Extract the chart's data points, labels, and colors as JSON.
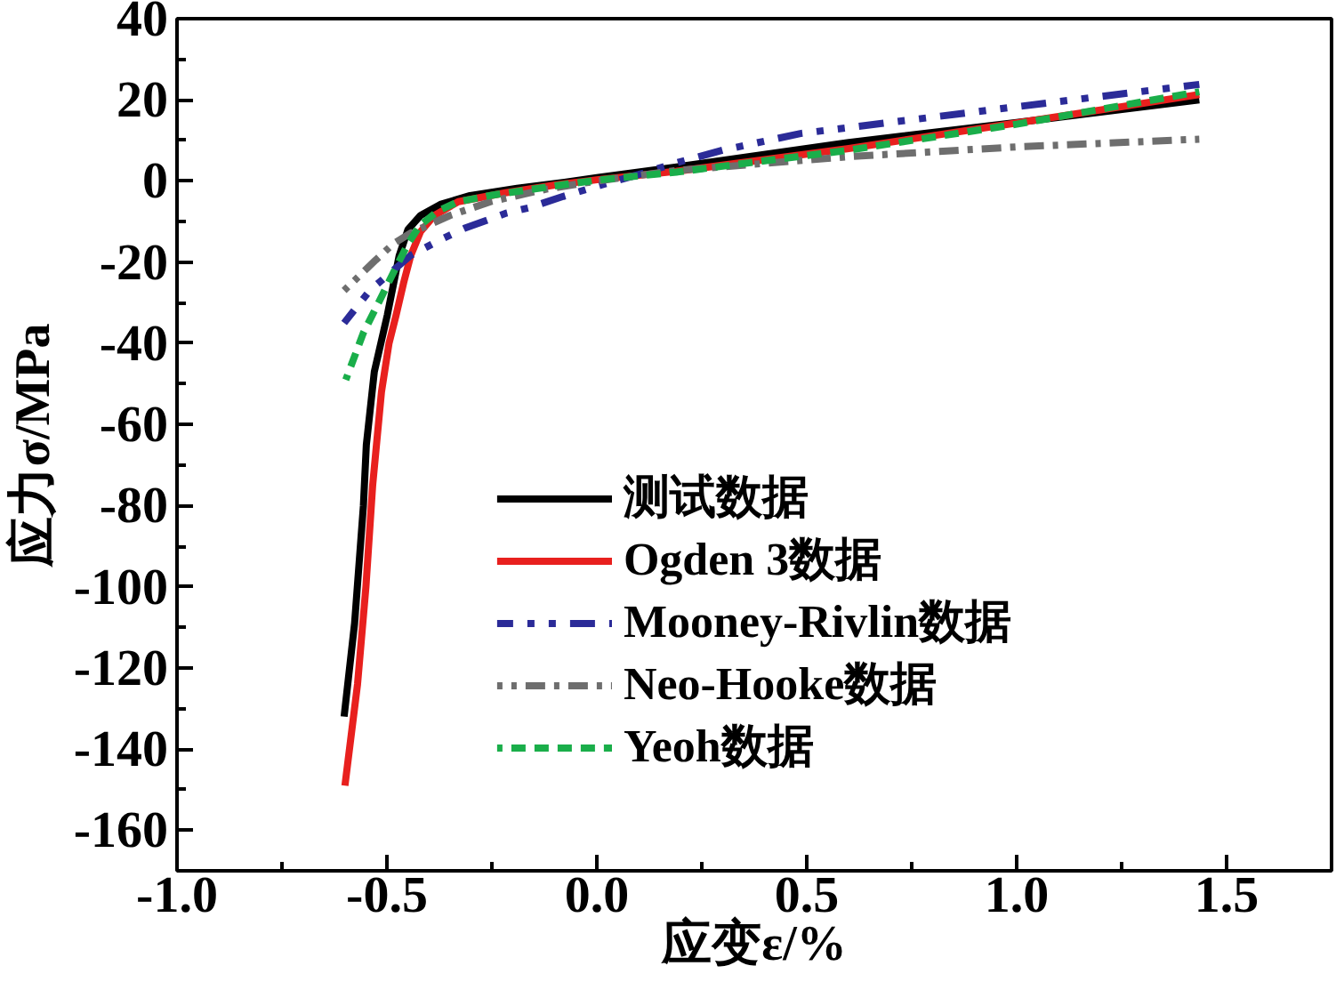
{
  "chart_data": {
    "type": "line",
    "xlabel": "应变ε/%",
    "ylabel": "应力σ/MPa",
    "xlim": [
      -1,
      1.75
    ],
    "ylim": [
      -170,
      40
    ],
    "xticks": [
      {
        "value": -1,
        "label": "-1.0"
      },
      {
        "value": -0.75,
        "label": null
      },
      -0.5,
      {
        "value": -0.25,
        "label": null
      },
      {
        "value": 0,
        "label": "0.0"
      },
      {
        "value": 0.25,
        "label": null
      },
      0.5,
      {
        "value": 0.75,
        "label": null
      },
      {
        "value": 1,
        "label": "1.0"
      },
      {
        "value": 1.25,
        "label": null
      },
      1.5
    ],
    "yticks": [
      -160,
      {
        "value": -150,
        "label": null
      },
      -140,
      {
        "value": -130,
        "label": null
      },
      -120,
      {
        "value": -110,
        "label": null
      },
      -100,
      {
        "value": -90,
        "label": null
      },
      -80,
      {
        "value": -70,
        "label": null
      },
      -60,
      {
        "value": -50,
        "label": null
      },
      -40,
      {
        "value": -30,
        "label": null
      },
      -20,
      {
        "value": -10,
        "label": null
      },
      0,
      {
        "value": 10,
        "label": null
      },
      20,
      {
        "value": 30,
        "label": null
      },
      40
    ],
    "legend": "bottom",
    "series": [
      {
        "name": "测试数据",
        "color": "#000000",
        "line_style": "solid",
        "x": [
          -0.602,
          -0.577,
          -0.556,
          -0.549,
          -0.53,
          -0.499,
          -0.471,
          -0.45,
          -0.42,
          -0.373,
          -0.302,
          -0.19,
          -0.077,
          0,
          0.2,
          0.6,
          1.0,
          1.435
        ],
        "values": [
          -132,
          -109,
          -80,
          -65,
          -47,
          -33,
          -18.5,
          -12,
          -8.5,
          -5.8,
          -3.6,
          -1.8,
          -0.3,
          0.8,
          3.6,
          9.5,
          14.4,
          20
        ]
      },
      {
        "name": "Ogden 3数据",
        "color": "#e8201e",
        "line_style": "solid",
        "x": [
          -0.6,
          -0.57,
          -0.55,
          -0.534,
          -0.513,
          -0.495,
          -0.478,
          -0.46,
          -0.443,
          -0.42,
          -0.387,
          -0.33,
          -0.218,
          -0.1,
          0,
          0.19,
          0.6,
          1.0,
          1.435
        ],
        "values": [
          -149,
          -124,
          -100,
          -75,
          -52,
          -40,
          -33,
          -25,
          -18.3,
          -12.5,
          -8.5,
          -5.1,
          -2.9,
          -1,
          0.3,
          2.4,
          8,
          14.3,
          21.3
        ]
      },
      {
        "name": "Mooney-Rivlin数据",
        "color": "#2b2b98",
        "line_style": "dashdotdot",
        "x": [
          -0.602,
          -0.541,
          -0.443,
          -0.373,
          -0.316,
          -0.218,
          -0.162,
          -0.08,
          0,
          0.1,
          0.19,
          0.3,
          0.485,
          1.0,
          1.435
        ],
        "values": [
          -35,
          -27,
          -18.3,
          -14.5,
          -11.7,
          -8,
          -6.6,
          -3.8,
          -1.3,
          1.6,
          4.5,
          7.6,
          11.7,
          18.3,
          23.8
        ]
      },
      {
        "name": "Neo-Hooke数据",
        "color": "#6e6e6e",
        "line_style": "dashdot",
        "x": [
          -0.602,
          -0.527,
          -0.485,
          -0.443,
          -0.35,
          -0.25,
          -0.12,
          0,
          0.19,
          0.6,
          1.0,
          1.435
        ],
        "values": [
          -27,
          -19.5,
          -15.5,
          -12.8,
          -8.5,
          -5,
          -2,
          0,
          2.6,
          6,
          8.4,
          10.3
        ]
      },
      {
        "name": "Yeoh数据",
        "color": "#1aae4a",
        "line_style": "dashed",
        "x": [
          -0.598,
          -0.556,
          -0.52,
          -0.478,
          -0.45,
          -0.422,
          -0.38,
          -0.33,
          -0.25,
          -0.1,
          0,
          0.19,
          0.6,
          1.0,
          1.435
        ],
        "values": [
          -49,
          -37.4,
          -30,
          -21.2,
          -15.5,
          -11,
          -7.5,
          -5.1,
          -3.5,
          -1.2,
          0.2,
          2.2,
          7.6,
          14,
          22
        ]
      }
    ]
  }
}
